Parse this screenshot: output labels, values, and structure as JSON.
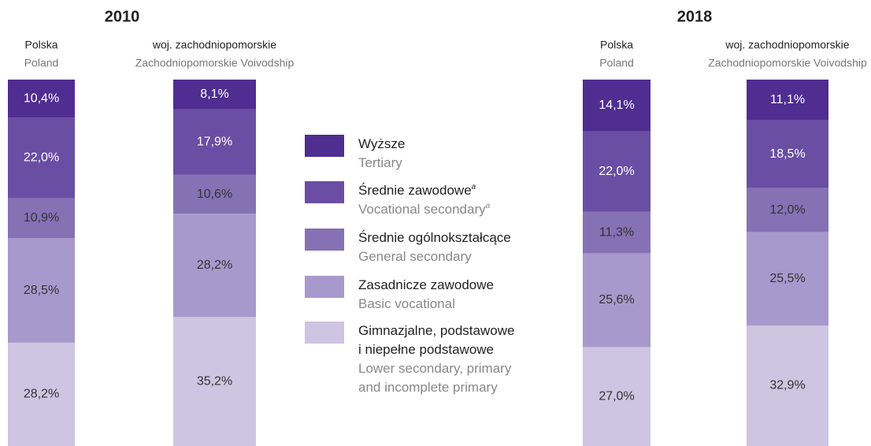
{
  "chart_data": [
    {
      "type": "stacked-bar",
      "title": "2010",
      "categories": [
        "Polska",
        "woj. zachodniopomorskie"
      ],
      "category_translations": [
        "Poland",
        "Zachodniopomorskie Voivodship"
      ],
      "ylim": [
        0,
        100
      ],
      "series": [
        {
          "values": [
            10.4,
            8.1
          ],
          "value_labels": [
            "10,4%",
            "8,1%"
          ]
        },
        {
          "values": [
            22.0,
            17.9
          ],
          "value_labels": [
            "22,0%",
            "17,9%"
          ]
        },
        {
          "values": [
            10.9,
            10.6
          ],
          "value_labels": [
            "10,9%",
            "10,6%"
          ]
        },
        {
          "values": [
            28.5,
            28.2
          ],
          "value_labels": [
            "28,5%",
            "28,2%"
          ]
        },
        {
          "values": [
            28.2,
            35.2
          ],
          "value_labels": [
            "28,2%",
            "35,2%"
          ]
        }
      ]
    },
    {
      "type": "stacked-bar",
      "title": "2018",
      "categories": [
        "Polska",
        "woj. zachodniopomorskie"
      ],
      "category_translations": [
        "Poland",
        "Zachodniopomorskie Voivodship"
      ],
      "ylim": [
        0,
        100
      ],
      "series": [
        {
          "values": [
            14.1,
            11.1
          ],
          "value_labels": [
            "14,1%",
            "11,1%"
          ]
        },
        {
          "values": [
            22.0,
            18.5
          ],
          "value_labels": [
            "22,0%",
            "18,5%"
          ]
        },
        {
          "values": [
            11.3,
            12.0
          ],
          "value_labels": [
            "11,3%",
            "12,0%"
          ]
        },
        {
          "values": [
            25.6,
            25.5
          ],
          "value_labels": [
            "25,6%",
            "25,5%"
          ]
        },
        {
          "values": [
            27.0,
            32.9
          ],
          "value_labels": [
            "27,0%",
            "32,9%"
          ]
        }
      ]
    }
  ],
  "legend": [
    {
      "name": [
        "Wyższe"
      ],
      "translation": [
        "Tertiary"
      ],
      "color": "#4f2d91"
    },
    {
      "name": [
        "Średnie zawodowe"
      ],
      "translation": [
        "Vocational secondary"
      ],
      "note_mark": "a",
      "color": "#6a4ea3"
    },
    {
      "name": [
        "Średnie ogólnokształcące"
      ],
      "translation": [
        "General secondary"
      ],
      "color": "#8671b5"
    },
    {
      "name": [
        "Zasadnicze zawodowe"
      ],
      "translation": [
        "Basic vocational"
      ],
      "color": "#a899cc"
    },
    {
      "name": [
        "Gimnazjalne, podstawowe",
        "i niepełne podstawowe"
      ],
      "translation": [
        "Lower secondary, primary",
        "and incomplete primary"
      ],
      "color": "#cdc5e1"
    }
  ]
}
